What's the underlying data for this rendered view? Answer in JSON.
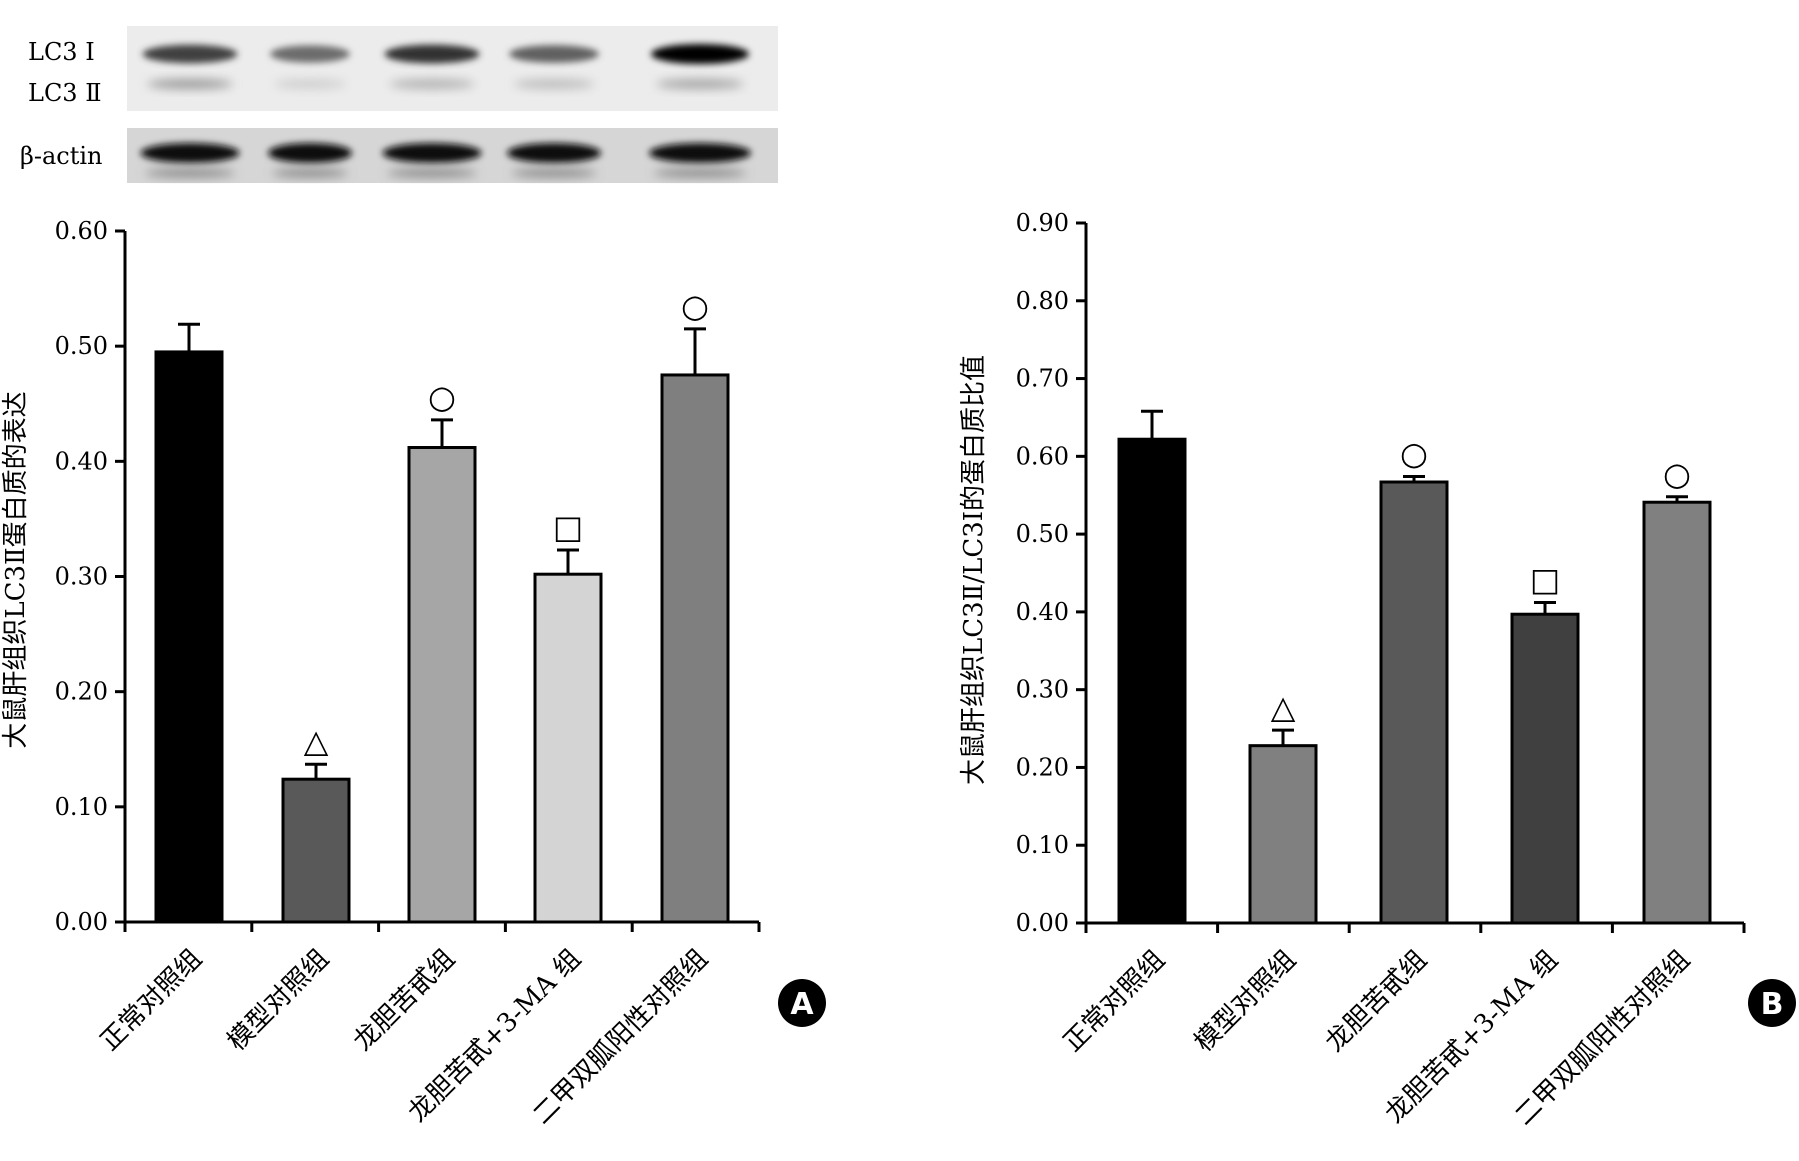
{
  "blot": {
    "labels": [
      "LC3 Ⅰ",
      "LC3 Ⅱ",
      "β-actin"
    ],
    "lc3i_intensity": [
      0.75,
      0.55,
      0.8,
      0.6,
      1.0
    ],
    "lc3ii_intensity": [
      0.35,
      0.12,
      0.25,
      0.2,
      0.3
    ],
    "actin_intensity": [
      0.95,
      0.95,
      0.95,
      0.95,
      0.95
    ]
  },
  "chart_data": [
    {
      "panel": "A",
      "type": "bar",
      "categories": [
        "正常对照组",
        "模型对照组",
        "龙胆苦甙组",
        "龙胆苦甙+3-MA 组",
        "二甲双胍阳性对照组"
      ],
      "values": [
        0.495,
        0.124,
        0.412,
        0.302,
        0.475
      ],
      "errors": [
        0.024,
        0.013,
        0.024,
        0.021,
        0.04
      ],
      "annotations": [
        "",
        "△",
        "○",
        "□",
        "○"
      ],
      "bar_colors": [
        "#000000",
        "#595959",
        "#a6a6a6",
        "#d4d4d4",
        "#7f7f7f"
      ],
      "ylabel": "大鼠肝组织LC3Ⅱ蛋白质的表达",
      "xlabel": "",
      "ylim": [
        0,
        0.6
      ],
      "yticks": [
        "0.00",
        "0.10",
        "0.20",
        "0.30",
        "0.40",
        "0.50",
        "0.60"
      ],
      "badge": "A"
    },
    {
      "panel": "B",
      "type": "bar",
      "categories": [
        "正常对照组",
        "模型对照组",
        "龙胆苦甙组",
        "龙胆苦甙+3-MA 组",
        "二甲双胍阳性对照组"
      ],
      "values": [
        0.622,
        0.228,
        0.567,
        0.397,
        0.541
      ],
      "errors": [
        0.036,
        0.02,
        0.007,
        0.015,
        0.007
      ],
      "annotations": [
        "",
        "△",
        "○",
        "□",
        "○"
      ],
      "bar_colors": [
        "#000000",
        "#808080",
        "#595959",
        "#404040",
        "#808080"
      ],
      "ylabel": "大鼠肝组织LC3Ⅱ/LC3Ⅰ的蛋白质比值",
      "xlabel": "",
      "ylim": [
        0,
        0.9
      ],
      "yticks": [
        "0.00",
        "0.10",
        "0.20",
        "0.30",
        "0.40",
        "0.50",
        "0.60",
        "0.70",
        "0.80",
        "0.90"
      ],
      "badge": "B"
    }
  ]
}
